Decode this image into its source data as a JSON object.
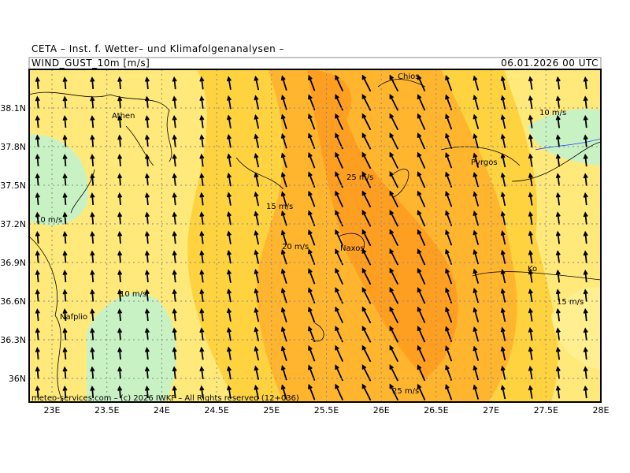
{
  "header": {
    "institute": "CETA – Inst. f. Wetter– und Klimafolgenanalysen –",
    "field": "WIND_GUST_10m [m/s]",
    "valid_time": "06.01.2026 00 UTC"
  },
  "axes": {
    "lat_ticks": [
      {
        "value": 38.1,
        "label": "38.1N"
      },
      {
        "value": 37.8,
        "label": "37.8N"
      },
      {
        "value": 37.5,
        "label": "37.5N"
      },
      {
        "value": 37.2,
        "label": "37.2N"
      },
      {
        "value": 36.9,
        "label": "36.9N"
      },
      {
        "value": 36.6,
        "label": "36.6N"
      },
      {
        "value": 36.3,
        "label": "36.3N"
      },
      {
        "value": 36,
        "label": "36N"
      }
    ],
    "lon_ticks": [
      {
        "value": 23,
        "label": "23E"
      },
      {
        "value": 23.5,
        "label": "23.5E"
      },
      {
        "value": 24,
        "label": "24E"
      },
      {
        "value": 24.5,
        "label": "24.5E"
      },
      {
        "value": 25,
        "label": "25E"
      },
      {
        "value": 25.5,
        "label": "25.5E"
      },
      {
        "value": 26,
        "label": "26E"
      },
      {
        "value": 26.5,
        "label": "26.5E"
      },
      {
        "value": 27,
        "label": "27E"
      },
      {
        "value": 27.5,
        "label": "27.5E"
      },
      {
        "value": 28,
        "label": "28E"
      }
    ]
  },
  "places": [
    "Athen",
    "Chios",
    "Pyrgos",
    "Naxos",
    "Nafplio",
    "Ko"
  ],
  "contour_labels": [
    "10 m/s",
    "25 m/s",
    "15 m/s",
    "20 m/s",
    "10 m/s",
    "10 m/s",
    "15 m/s",
    "25 m/s"
  ],
  "footer": "meteo-services.com – (c) 2026 IWKF – All Rights reserved (12+036)"
}
